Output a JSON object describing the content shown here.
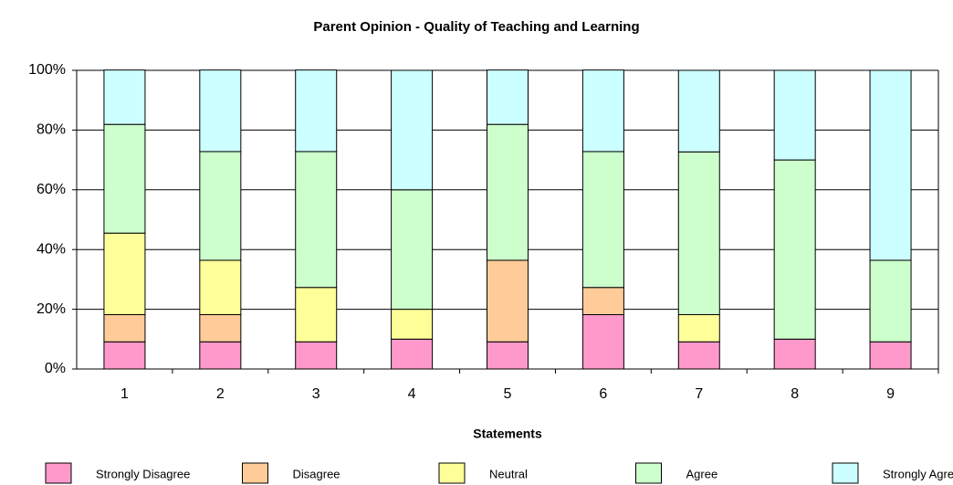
{
  "chart_data": {
    "type": "stacked_bar_100",
    "title": "Parent Opinion - Quality of Teaching and Learning",
    "x_label": "Statements",
    "categories": [
      "1",
      "2",
      "3",
      "4",
      "5",
      "6",
      "7",
      "8",
      "9"
    ],
    "series": [
      {
        "name": "Strongly Disagree",
        "color": "#ff99cc",
        "values": [
          9.1,
          9.1,
          9.1,
          10,
          9.1,
          18.2,
          9.1,
          10,
          9.1
        ]
      },
      {
        "name": "Disagree",
        "color": "#ffcc99",
        "values": [
          9.1,
          9.1,
          0,
          0,
          27.3,
          9.1,
          0,
          0,
          0
        ]
      },
      {
        "name": "Neutral",
        "color": "#ffff99",
        "values": [
          27.3,
          18.2,
          18.2,
          10,
          0,
          0,
          9.1,
          0,
          0
        ]
      },
      {
        "name": "Agree",
        "color": "#ccffcc",
        "values": [
          36.4,
          36.4,
          45.5,
          40,
          45.5,
          45.5,
          54.5,
          60,
          27.3
        ]
      },
      {
        "name": "Strongly Agree",
        "color": "#ccffff",
        "values": [
          18.2,
          27.3,
          27.3,
          40,
          18.2,
          27.3,
          27.3,
          30,
          63.6
        ]
      }
    ],
    "ylim": [
      0,
      100
    ],
    "yticks": [
      {
        "value": 0,
        "label": "0%"
      },
      {
        "value": 20,
        "label": "20%"
      },
      {
        "value": 40,
        "label": "40%"
      },
      {
        "value": 60,
        "label": "60%"
      },
      {
        "value": 80,
        "label": "80%"
      },
      {
        "value": 100,
        "label": "100%"
      }
    ],
    "grid": true,
    "legend": "bottom"
  }
}
